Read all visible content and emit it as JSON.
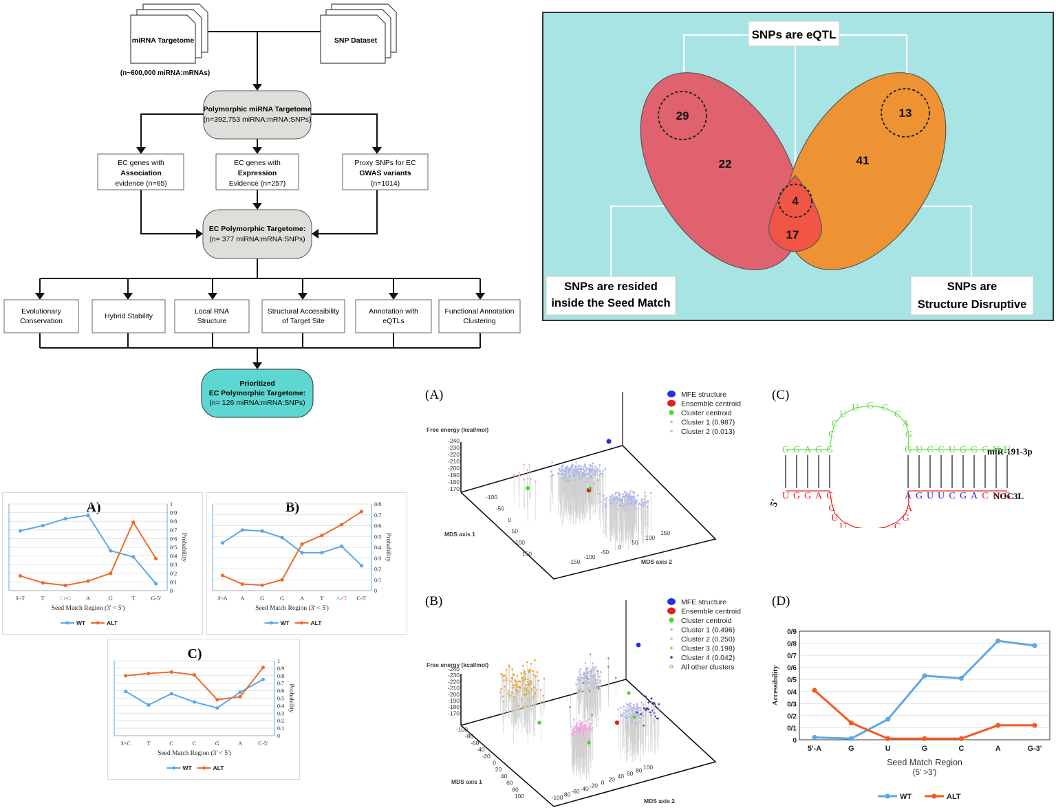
{
  "flowchart": {
    "source_left": "miRNA Targetome",
    "source_right": "SNP Dataset",
    "source_count": "(n~600,000 miRNA:mRNAs)",
    "poly_title": "Polymorphic miRNA Targetome",
    "poly_count": "(n=392,753 miRNA:mRNA:SNPs)",
    "evidence": [
      {
        "l1": "EC genes with",
        "l2": "Association",
        "l3": "evidence (n=65)"
      },
      {
        "l1": "EC genes with",
        "l2": "Expression",
        "l3": "Evidence (n=257)"
      },
      {
        "l1": "Proxy SNPs for EC",
        "l2": "GWAS variants",
        "l3": "(n=1014)"
      }
    ],
    "ec_title": "EC Polymorphic Targetome:",
    "ec_count": "(n= 377 miRNA:mRNA:SNPs)",
    "analyses": [
      {
        "l1": "Evolutionary",
        "l2": "Conservation"
      },
      {
        "l1": "Hybrid Stability",
        "l2": ""
      },
      {
        "l1": "Local RNA",
        "l2": "Structure"
      },
      {
        "l1": "Structural Accessibility",
        "l2": "of Target Site"
      },
      {
        "l1": "Annotation with",
        "l2": "eQTLs"
      },
      {
        "l1": "Functional Annotation",
        "l2": "Clustering"
      }
    ],
    "final_l1": "Prioritized",
    "final_l2": "EC Polymorphic Targetome:",
    "final_l3": "(n= 126 miRNA:mRNA:SNPs)"
  },
  "venn": {
    "top_label": "SNPs are eQTL",
    "left_label_1": "SNPs are resided",
    "left_label_2": "inside the Seed Match",
    "right_label_1": "SNPs are",
    "right_label_2": "Structure Disruptive",
    "n_left_eqtl": "29",
    "n_left": "22",
    "n_center_eqtl": "4",
    "n_center": "17",
    "n_right": "41",
    "n_right_eqtl": "13",
    "colors": {
      "background": "#a8e4e4",
      "left": "#e0626e",
      "right": "#ee9333",
      "center": "#f05545"
    }
  },
  "chart_data": [
    {
      "panel": "A)",
      "type": "line",
      "categories": [
        "3'-T",
        "T",
        "C>G",
        "A",
        "G",
        "T",
        "G-5'"
      ],
      "series": [
        {
          "name": "WT",
          "values": [
            0.69,
            0.75,
            0.83,
            0.87,
            0.46,
            0.39,
            0.08
          ],
          "color": "#5ba8e8"
        },
        {
          "name": "ALT",
          "values": [
            0.17,
            0.09,
            0.06,
            0.11,
            0.2,
            0.79,
            0.37
          ],
          "color": "#ec6b2d"
        }
      ],
      "xlabel": "Seed Match Region (3' < 5')",
      "ylabel": "Probability",
      "yticks": [
        "1",
        "0/9",
        "0/8",
        "0/7",
        "0/6",
        "0/5",
        "0/4",
        "0/3",
        "0/2",
        "0/1",
        "0"
      ],
      "ylim": [
        0,
        1
      ]
    },
    {
      "panel": "B)",
      "type": "line",
      "categories": [
        "3'-A",
        "A",
        "G",
        "G",
        "A",
        "T",
        "A>T",
        "C-5'"
      ],
      "series": [
        {
          "name": "WT",
          "values": [
            0.44,
            0.56,
            0.55,
            0.49,
            0.35,
            0.35,
            0.41,
            0.23
          ],
          "color": "#5ba8e8"
        },
        {
          "name": "ALT",
          "values": [
            0.14,
            0.06,
            0.05,
            0.1,
            0.43,
            0.51,
            0.61,
            0.73
          ],
          "color": "#ec6b2d"
        }
      ],
      "xlabel": "Seed Match Region (3' < 5')",
      "ylabel": "Probability",
      "yticks": [
        "0/8",
        "0/7",
        "0/6",
        "0/5",
        "0/4",
        "0/3",
        "0/2",
        "0/1",
        "0"
      ],
      "ylim": [
        0,
        0.8
      ]
    },
    {
      "panel": "C)",
      "type": "line",
      "categories": [
        "3'-C",
        "T",
        "C",
        "C",
        "G",
        "A",
        "C-5'"
      ],
      "series": [
        {
          "name": "WT",
          "values": [
            0.59,
            0.41,
            0.56,
            0.45,
            0.37,
            0.58,
            0.75
          ],
          "color": "#5ba8e8"
        },
        {
          "name": "ALT",
          "values": [
            0.8,
            0.83,
            0.85,
            0.81,
            0.48,
            0.52,
            0.91
          ],
          "color": "#ec6b2d"
        }
      ],
      "xlabel": "Seed Match Region (3' < 5')",
      "ylabel": "Probability",
      "yticks": [
        "1",
        "0/9",
        "0/8",
        "0/7",
        "0/6",
        "0/5",
        "0/4",
        "0/3",
        "0/2",
        "0/1",
        "0"
      ],
      "ylim": [
        0,
        1
      ]
    },
    {
      "panel": "(D)",
      "type": "line",
      "categories": [
        "5'-A",
        "G",
        "U",
        "G",
        "C",
        "A",
        "G-3'"
      ],
      "series": [
        {
          "name": "WT",
          "values": [
            0.02,
            0.01,
            0.17,
            0.53,
            0.51,
            0.82,
            0.78
          ],
          "color": "#5ba8e8"
        },
        {
          "name": "ALT",
          "values": [
            0.41,
            0.14,
            0.01,
            0.01,
            0.01,
            0.12,
            0.12
          ],
          "color": "#f15a22"
        }
      ],
      "xlabel": "Seed Match Region",
      "xlabel2": "(5' >3')",
      "ylabel": "Accessibility",
      "yticks": [
        "0/9",
        "0/8",
        "0/7",
        "0/6",
        "0/5",
        "0/4",
        "0/3",
        "0/2",
        "0/1",
        "0"
      ],
      "ylim": [
        0,
        0.9
      ]
    }
  ],
  "mds": [
    {
      "panel": "(A)",
      "zlabel": "Free energy (kcal/mol)",
      "zticks": [
        "-240",
        "-230",
        "-220",
        "-210",
        "-200",
        "-190",
        "-180",
        "-170"
      ],
      "x1label": "MDS axis 1",
      "x1ticks": [
        "-100",
        "-50",
        "0",
        "50",
        "100",
        "150"
      ],
      "x2label": "MDS axis 2",
      "x2ticks": [
        "-150",
        "-100",
        "-50",
        "0",
        "50",
        "100",
        "150"
      ],
      "legend": [
        {
          "label": "MFE structure",
          "color": "#2233dd",
          "kind": "big"
        },
        {
          "label": "Ensemble centroid",
          "color": "#e02020",
          "kind": "big"
        },
        {
          "label": "Cluster centroid",
          "color": "#44dd22",
          "kind": "med"
        },
        {
          "label": "Cluster 1 (0.987)",
          "color": "#aab4f0",
          "kind": "small"
        },
        {
          "label": "Cluster 2 (0.013)",
          "color": "#f4a0e0",
          "kind": "small"
        }
      ]
    },
    {
      "panel": "(B)",
      "zlabel": "Free energy (kcal/mol)",
      "zticks": [
        "-240",
        "-230",
        "-220",
        "-210",
        "-200",
        "-190",
        "-180",
        "-170"
      ],
      "x1label": "MDS axis 1",
      "x1ticks": [
        "-100",
        "-80",
        "-60",
        "-40",
        "-20",
        "0",
        "20",
        "40",
        "60",
        "80",
        "100"
      ],
      "x2label": "MDS axis 2",
      "x2ticks": [
        "-100",
        "-80",
        "-60",
        "-40",
        "-20",
        "0",
        "20",
        "40",
        "60",
        "80",
        "100"
      ],
      "legend": [
        {
          "label": "MFE structure",
          "color": "#2233dd",
          "kind": "big"
        },
        {
          "label": "Ensemble centroid",
          "color": "#e02020",
          "kind": "big"
        },
        {
          "label": "Cluster centroid",
          "color": "#44dd22",
          "kind": "med"
        },
        {
          "label": "Cluster 1 (0.496)",
          "color": "#aab4f0",
          "kind": "small"
        },
        {
          "label": "Cluster 2 (0.250)",
          "color": "#f4a0e0",
          "kind": "small"
        },
        {
          "label": "Cluster 3 (0.198)",
          "color": "#f0a020",
          "kind": "small"
        },
        {
          "label": "Cluster 4 (0.042)",
          "color": "#5520aa",
          "kind": "small"
        },
        {
          "label": "All other clusters",
          "color": "#888888",
          "kind": "ring"
        }
      ]
    }
  ],
  "hybrid": {
    "panel": "(C)",
    "mirna_label": "miR-191-3p",
    "target_label": "NOC3L",
    "prime5": "5'",
    "colors": {
      "mirna": "#66dd44",
      "target": "#e82020",
      "seed": "#2a2ad0",
      "pair": "#111111"
    }
  }
}
